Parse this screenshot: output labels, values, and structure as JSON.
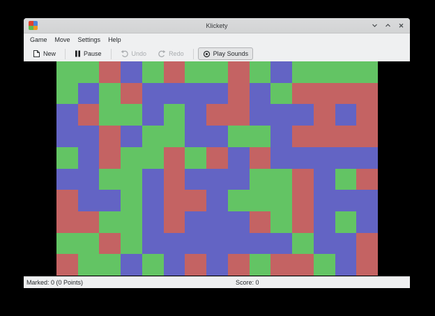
{
  "window": {
    "title": "Klickety",
    "icon_colors": [
      "#e0432e",
      "#4f83d6",
      "#5dbd4e",
      "#f0991f"
    ],
    "controls": [
      "minimize",
      "maximize",
      "close"
    ]
  },
  "icons": {
    "app-icon": "2x2-color-grid",
    "minimize-icon": "chevron-down",
    "maximize-icon": "chevron-up",
    "close-icon": "x-cross",
    "new-icon": "blank-document",
    "pause-icon": "double-vertical-bars",
    "undo-icon": "curved-arrow-left",
    "redo-icon": "curved-arrow-right",
    "play-sounds-icon": "circle-with-dot"
  },
  "menubar": {
    "items": [
      "Game",
      "Move",
      "Settings",
      "Help"
    ]
  },
  "toolbar": {
    "buttons": [
      {
        "label": "New",
        "enabled": true
      },
      {
        "label": "Pause",
        "enabled": true
      },
      {
        "label": "Undo",
        "enabled": false
      },
      {
        "label": "Redo",
        "enabled": false
      },
      {
        "label": "Play Sounds",
        "enabled": true,
        "toggled": true
      }
    ]
  },
  "statusbar": {
    "marked": "Marked: 0 (0 Points)",
    "score": "Score: 0"
  },
  "board": {
    "rows": 10,
    "cols": 15,
    "palette": {
      "R": "#c46363",
      "G": "#63c464",
      "B": "#6364c4"
    },
    "grid": [
      "GGRBGRGGRGBGGGG",
      "GBGRBBBBRBGRRRR",
      "BRGGBGBRRBBBRBR",
      "BBRBGGBBGGBRRRR",
      "GBRGGRGRBRBBBBB",
      "BBGGBRBBBGGRBGR",
      "RBBGBRRBGGGRBBB",
      "RRGGBRBBBRGRBGB",
      "GGRGBBBBBBBGBBR",
      "RGGBGBRBRGRRGBR"
    ]
  }
}
